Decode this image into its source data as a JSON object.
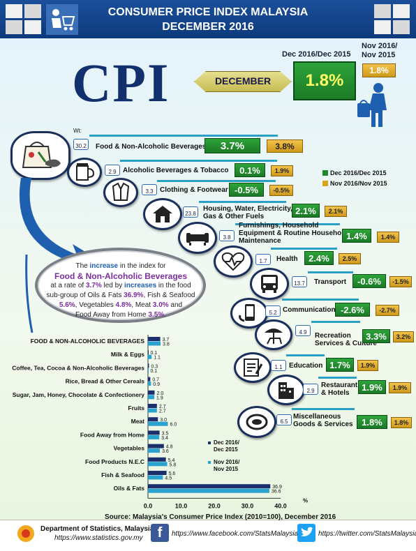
{
  "header": {
    "title_line1": "CONSUMER PRICE INDEX MALAYSIA",
    "title_line2": "DECEMBER 2016"
  },
  "cpi": {
    "big": "CPI",
    "month": "DECEMBER",
    "label_main": "Dec 2016/Dec 2015",
    "value_main": "1.8%",
    "label_sub_1": "Nov 2016/",
    "label_sub_2": "Nov 2015",
    "value_sub": "1.8%"
  },
  "weight_label": "Wt:",
  "legend": {
    "green": "Dec 2016/Dec 2015",
    "yellow": "Nov 2016/Nov 2015",
    "green_color": "#1f8a2b",
    "yellow_color": "#d9a520"
  },
  "groups": [
    {
      "icon": "grocery-bag-icon",
      "weight": "30.2",
      "name": "Food & Non-Alcoholic Beverages",
      "name2": "",
      "dec": "3.7%",
      "nov": "3.8%"
    },
    {
      "icon": "beer-mug-icon",
      "weight": "2.9",
      "name": "Alcoholic Beverages & Tobacco",
      "name2": "",
      "dec": "0.1%",
      "nov": "1.9%"
    },
    {
      "icon": "shirt-icon",
      "weight": "3.3",
      "name": "Clothing & Footwear",
      "name2": "",
      "dec": "-0.5%",
      "nov": "-0.5%"
    },
    {
      "icon": "house-icon",
      "weight": "23.8",
      "name": "Housing, Water, Electricity,",
      "name2": "Gas & Other Fuels",
      "dec": "2.1%",
      "nov": "2.1%"
    },
    {
      "icon": "sofa-icon",
      "weight": "3.8",
      "name": "Furnishings, Household",
      "name2": "Equipment & Routine Household",
      "name3": "Maintenance",
      "dec": "1.4%",
      "nov": "1.4%"
    },
    {
      "icon": "heartbeat-icon",
      "weight": "1.7",
      "name": "Health",
      "name2": "",
      "dec": "2.4%",
      "nov": "2.5%"
    },
    {
      "icon": "bus-icon",
      "weight": "13.7",
      "name": "Transport",
      "name2": "",
      "dec": "-0.6%",
      "nov": "-1.5%"
    },
    {
      "icon": "phone-icon",
      "weight": "5.2",
      "name": "Communication",
      "name2": "",
      "dec": "-2.6%",
      "nov": "-2.7%"
    },
    {
      "icon": "umbrella-chair-icon",
      "weight": "4.9",
      "name": "Recreation",
      "name2": "Services & Culture",
      "dec": "3.3%",
      "nov": "3.2%"
    },
    {
      "icon": "certificate-icon",
      "weight": "1.1",
      "name": "Education",
      "name2": "",
      "dec": "1.7%",
      "nov": "1.9%"
    },
    {
      "icon": "hotel-icon",
      "weight": "2.9",
      "name": "Restaurant",
      "name2": "& Hotels",
      "dec": "1.9%",
      "nov": "1.9%"
    },
    {
      "icon": "jewelry-icon",
      "weight": "6.5",
      "name": "Miscellaneous",
      "name2": "Goods & Services",
      "dec": "1.8%",
      "nov": "1.8%"
    }
  ],
  "callout": {
    "l1a": "The ",
    "l1b": "increase",
    "l1c": " in the index for",
    "l2": "Food & Non-Alcoholic Beverages",
    "l3a": "at a rate of ",
    "l3b": "3.7%",
    "l3c": " led by ",
    "l3d": "increases",
    "l3e": " in the food",
    "l4a": "sub-group of Oils & Fats ",
    "l4b": "36.9%",
    "l4c": ", Fish & Seafood",
    "l5a": "5.6%",
    "l5b": ", Vegetables ",
    "l5c": "4.8%",
    "l5d": ", Meat ",
    "l5e": "3.0%",
    "l5f": " and",
    "l6a": "Food Away from Home ",
    "l6b": "3.5%",
    "l6c": "."
  },
  "chart_data": {
    "type": "bar",
    "orientation": "horizontal",
    "categories": [
      "FOOD & NON-ALCOHOLIC BEVERAGES",
      "Milk & Eggs",
      "Coffee, Tea, Cocoa & Non-Alcoholic Beverages",
      "Rice, Bread & Other Cereals",
      "Sugar, Jam, Honey, Chocolate & Confectionery",
      "Fruits",
      "Meat",
      "Food Away from Home",
      "Vegetables",
      "Food Products N.E.C",
      "Fish & Seafood",
      "Oils & Fats"
    ],
    "series": [
      {
        "name": "Dec 2016/ Dec 2015",
        "color": "#1a2f6b",
        "values": [
          3.7,
          0.1,
          0.3,
          0.7,
          2.0,
          2.7,
          3.0,
          3.5,
          4.8,
          5.4,
          5.6,
          36.9
        ]
      },
      {
        "name": "Nov 2016/ Nov 2015",
        "color": "#2aa2cf",
        "values": [
          3.8,
          1.1,
          0.1,
          0.9,
          1.9,
          2.7,
          6.0,
          3.4,
          3.6,
          5.8,
          4.5,
          36.6
        ]
      }
    ],
    "xlim": [
      0,
      40
    ],
    "xticks": [
      "0.0",
      "10.0",
      "20.0",
      "30.0",
      "40.0"
    ],
    "xunit": "%",
    "legend_line1_a": "Dec 2016/",
    "legend_line2_a": "Dec 2015",
    "legend_line1_b": "Nov 2016/",
    "legend_line2_b": "Nov 2015",
    "source": "Source: Malaysia's Consumer Price Index (2010=100), December 2016"
  },
  "footer": {
    "dept": "Department of Statistics, Malaysia",
    "url": "https://www.statistics.gov.my",
    "facebook": "https://www.facebook.com/StatsMalaysia",
    "twitter": "https://twitter.com/StatsMalaysia"
  }
}
